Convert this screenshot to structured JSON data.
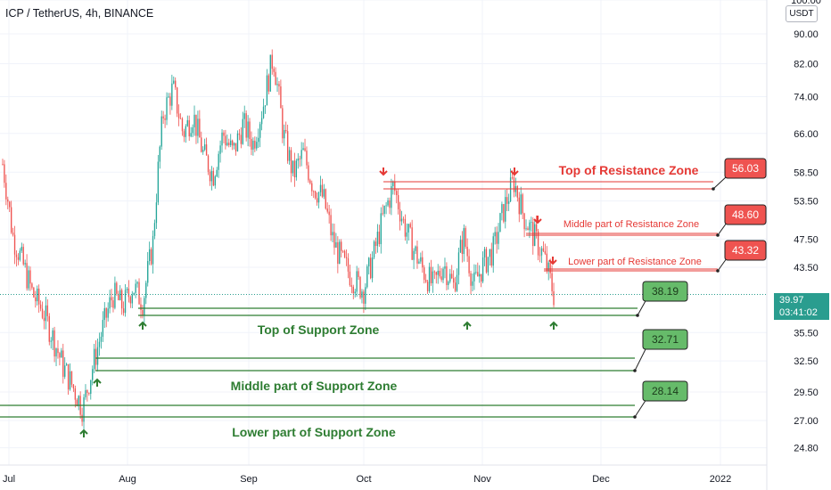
{
  "header": {
    "title": "ICP / TetherUS, 4h, BINANCE"
  },
  "axis": {
    "currency": "USDT"
  },
  "current_price": {
    "value": "39.97",
    "countdown": "03:41:02"
  },
  "colors": {
    "up": "#26a69a",
    "down": "#ef5350",
    "resistance": "#e53935",
    "support": "#2e7d32",
    "support_label_bg": "#66bb6a",
    "resistance_label_bg": "#ef5350",
    "current_price": "#2a9d8f"
  },
  "chart_data": {
    "type": "candlestick",
    "title": "ICP / TetherUS, 4h, BINANCE",
    "y_scale": "log",
    "ylim": [
      23.5,
      100
    ],
    "y_ticks": [
      "100.00",
      "90.00",
      "82.00",
      "74.00",
      "66.00",
      "58.50",
      "53.50",
      "47.50",
      "43.50",
      "35.50",
      "32.50",
      "29.50",
      "27.00",
      "24.80"
    ],
    "x_ticks": [
      "Jul",
      "Aug",
      "Sep",
      "Oct",
      "Nov",
      "Dec",
      "2022"
    ],
    "grid": true,
    "series": [
      {
        "name": "ICP/USDT 4h",
        "points": [
          [
            "Jul",
            60
          ],
          [
            "Jul",
            48
          ],
          [
            "Jul",
            44
          ],
          [
            "Jul",
            40
          ],
          [
            "Jul",
            38
          ],
          [
            "Jul",
            35
          ],
          [
            "Jul",
            32
          ],
          [
            "Jul",
            30
          ],
          [
            "Jul",
            28
          ],
          [
            "Jul",
            32
          ],
          [
            "Jul",
            36
          ],
          [
            "Jul",
            40
          ],
          [
            "Aug",
            38.5
          ],
          [
            "Aug",
            41
          ],
          [
            "Aug",
            39
          ],
          [
            "Aug",
            47
          ],
          [
            "Aug",
            70
          ],
          [
            "Aug",
            76
          ],
          [
            "Aug",
            66
          ],
          [
            "Aug",
            70
          ],
          [
            "Aug",
            62
          ],
          [
            "Aug",
            58
          ],
          [
            "Aug",
            66
          ],
          [
            "Aug",
            62
          ],
          [
            "Aug",
            68
          ],
          [
            "Sep",
            64
          ],
          [
            "Sep",
            72
          ],
          [
            "Sep",
            84
          ],
          [
            "Sep",
            66
          ],
          [
            "Sep",
            58
          ],
          [
            "Sep",
            62
          ],
          [
            "Sep",
            56
          ],
          [
            "Sep",
            54
          ],
          [
            "Sep",
            47
          ],
          [
            "Sep",
            44
          ],
          [
            "Sep",
            42
          ],
          [
            "Sep",
            40.5
          ],
          [
            "Oct",
            45
          ],
          [
            "Oct",
            51
          ],
          [
            "Oct",
            56
          ],
          [
            "Oct",
            50
          ],
          [
            "Oct",
            46
          ],
          [
            "Oct",
            43
          ],
          [
            "Oct",
            41
          ],
          [
            "Oct",
            44
          ],
          [
            "Oct",
            41
          ],
          [
            "Oct",
            48
          ],
          [
            "Oct",
            41
          ],
          [
            "Oct",
            44
          ],
          [
            "Nov",
            46
          ],
          [
            "Nov",
            52
          ],
          [
            "Nov",
            57
          ],
          [
            "Nov",
            51
          ],
          [
            "Nov",
            48
          ],
          [
            "Nov",
            45
          ],
          [
            "Nov",
            40
          ]
        ]
      }
    ],
    "resistance_levels": [
      {
        "value": 56.03,
        "label": "Top of Resistance Zone"
      },
      {
        "value": 48.6,
        "label": "Middle part of Resistance Zone"
      },
      {
        "value": 43.32,
        "label": "Lower part of Resistance Zone"
      }
    ],
    "support_levels": [
      {
        "value": 38.19,
        "label": "Top of Support Zone"
      },
      {
        "value": 32.71,
        "label": "Middle part of Support Zone"
      },
      {
        "value": 28.14,
        "label": "Lower part of Support Zone"
      }
    ],
    "annotations": {
      "resistance_values": [
        "56.03",
        "48.60",
        "43.32"
      ],
      "support_values": [
        "38.19",
        "32.71",
        "28.14"
      ]
    }
  }
}
